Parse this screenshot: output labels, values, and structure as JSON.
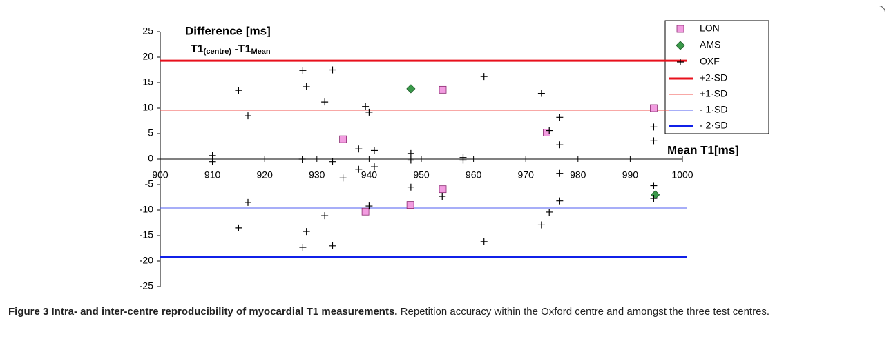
{
  "chart_data": {
    "type": "scatter",
    "y_label": "Difference [ms]",
    "y_label_formula": [
      "T1",
      "(centre)",
      " -T1",
      "Mean"
    ],
    "x_label": "Mean T1[ms]",
    "xlim": [
      900,
      1000
    ],
    "xticks": [
      900,
      910,
      920,
      930,
      940,
      950,
      960,
      970,
      980,
      990,
      1000
    ],
    "ylim": [
      -25,
      25
    ],
    "yticks": [
      -25,
      -20,
      -15,
      -10,
      -5,
      0,
      5,
      10,
      15,
      20,
      25
    ],
    "series": [
      {
        "name": "LON",
        "color": "#f29ce0",
        "marker": "square",
        "x": [
          935,
          939.3,
          947.9,
          954.1,
          954.1,
          974,
          994.5
        ],
        "values": [
          3.9,
          -10.3,
          -9,
          13.6,
          -5.9,
          5.2,
          10
        ]
      },
      {
        "name": "AMS",
        "color": "#3a9a4a",
        "marker": "diamond",
        "x": [
          948,
          994.8
        ],
        "values": [
          13.8,
          -7
        ]
      },
      {
        "name": "OXF",
        "color": "#000000",
        "marker": "plus",
        "x": [
          910,
          910,
          915,
          915,
          916.8,
          916.8,
          927.3,
          927.3,
          927.2,
          928,
          928,
          931.5,
          931.5,
          933,
          933,
          933,
          935,
          938,
          938,
          939.3,
          940,
          940,
          941,
          941,
          948,
          948,
          948,
          954,
          958,
          958,
          962,
          962,
          973,
          973,
          974.5,
          974.5,
          976.5,
          976.5,
          976.5,
          976.5,
          994.5,
          994.5,
          994.5,
          994.5
        ],
        "values": [
          0.7,
          -0.5,
          13.5,
          -13.5,
          8.5,
          -8.5,
          17.4,
          -17.3,
          0,
          14.2,
          -14.2,
          11.2,
          -11.1,
          17.5,
          -17,
          -0.5,
          -3.7,
          2,
          -2,
          10.3,
          9.2,
          -9.2,
          1.7,
          -1.5,
          1.1,
          -0.2,
          -5.5,
          -7.3,
          0.3,
          -0.2,
          16.2,
          -16.2,
          12.9,
          -12.9,
          5.6,
          -10.4,
          8.2,
          2.8,
          -2.8,
          -8.2,
          6.3,
          3.6,
          -5.2,
          -7.7
        ]
      }
    ],
    "lines": [
      {
        "name": "+2·SD",
        "color": "#e8101c",
        "value": 19.3
      },
      {
        "name": "+1·SD",
        "color": "#f0504c",
        "value": 9.6
      },
      {
        "name": "- 1·SD",
        "color": "#4f5cf0",
        "value": -9.6
      },
      {
        "name": "- 2·SD",
        "color": "#1020e8",
        "value": -19.2
      }
    ]
  },
  "caption": {
    "title": "Figure 3 Intra- and inter-centre reproducibility of myocardial T1 measurements.",
    "text": "Repetition accuracy within the Oxford centre and amongst the three test centres."
  }
}
